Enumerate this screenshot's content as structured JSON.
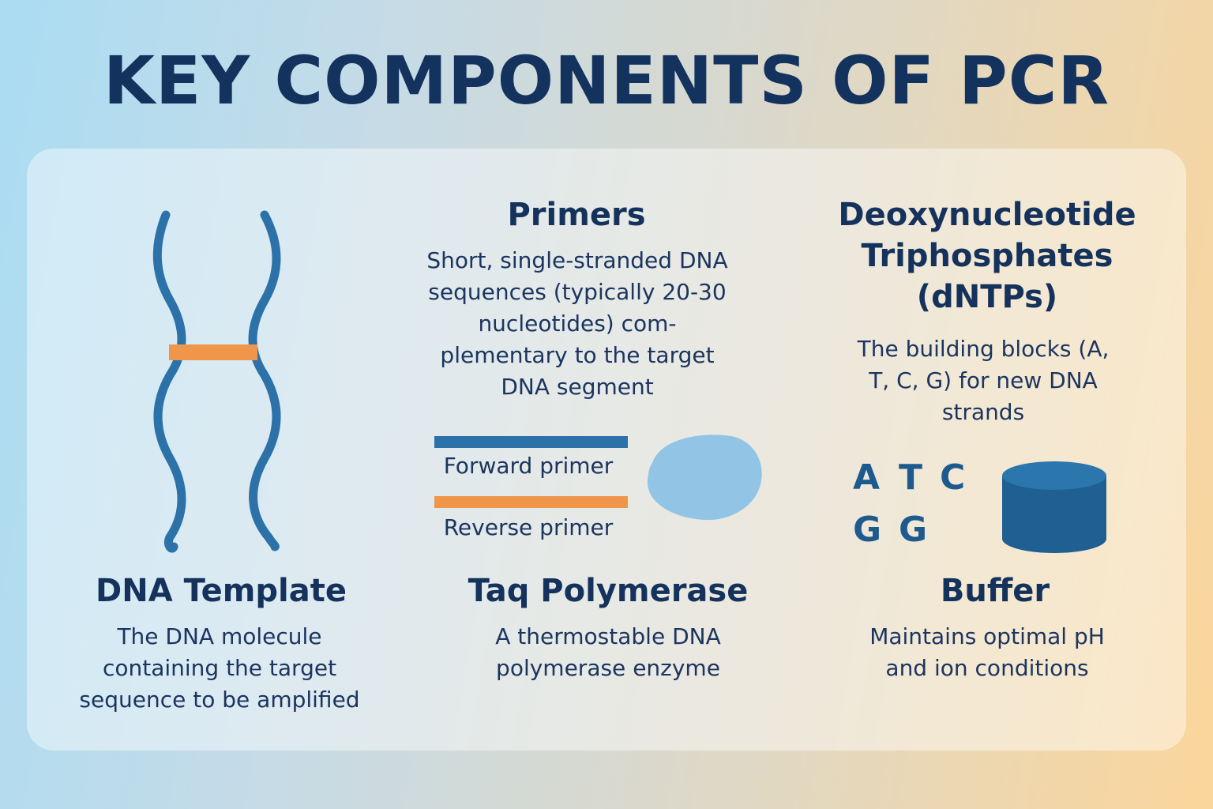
{
  "title": "KEY COMPONENTS OF PCR",
  "colors": {
    "dark_navy": "#13335e",
    "dna_blue": "#2c72a8",
    "primer_orange": "#f0964a",
    "enzyme_light_blue": "#92c4e6",
    "cylinder_blue": "#1f5f91"
  },
  "components": {
    "dna_template": {
      "heading": "DNA Template",
      "description": "The DNA molecule containing the target sequence to be amplified"
    },
    "primers": {
      "heading": "Primers",
      "description": "Short, single-stranded DNA sequences (typically 20-30 nucleotides) com-plementary to the target DNA segment",
      "forward_label": "Forward primer",
      "reverse_label": "Reverse primer"
    },
    "dntps": {
      "heading": "Deoxynucleotide Triphosphates (dNTPs)",
      "description": "The building blocks (A, T, C, G) for new DNA strands",
      "letters": [
        "A",
        "T",
        "C",
        "G",
        "G"
      ]
    },
    "taq": {
      "heading": "Taq Polymerase",
      "description": "A thermostable DNA polymerase enzyme"
    },
    "buffer": {
      "heading": "Buffer",
      "description": "Maintains optimal pH and ion conditions"
    }
  },
  "icons": {
    "dna_template": "dna-double-strand-icon",
    "taq": "enzyme-blob-icon",
    "buffer": "buffer-cylinder-icon"
  }
}
